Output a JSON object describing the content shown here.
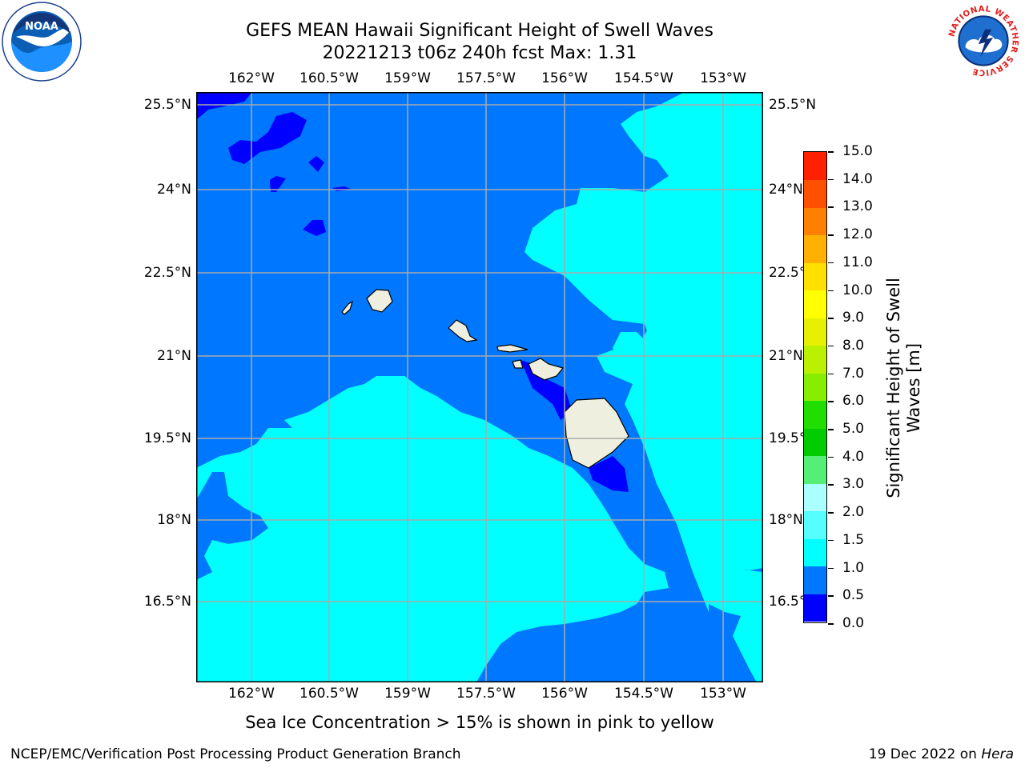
{
  "header": {
    "title_line1": "GEFS MEAN Hawaii Significant Height of Swell Waves",
    "title_line2": "20221213 t06z 240h fcst   Max: 1.31"
  },
  "logos": {
    "left": {
      "icon": "noaa-logo",
      "text": "NOAA"
    },
    "right": {
      "icon": "nws-logo",
      "text": "NATIONAL WEATHER SERVICE"
    }
  },
  "map": {
    "lon_labels": [
      "162°W",
      "160.5°W",
      "159°W",
      "157.5°W",
      "156°W",
      "154.5°W",
      "153°W"
    ],
    "lat_labels": [
      "25.5°N",
      "24°N",
      "22.5°N",
      "21°N",
      "19.5°N",
      "18°N",
      "16.5°N"
    ],
    "colors": {
      "lt05": "#0000ff",
      "b05_1": "#0077ff",
      "b1_15": "#00ffff",
      "land": "#efefdf",
      "grid": "#aaaaaa"
    }
  },
  "colorbar": {
    "title": "Significant Height of Swell Waves [m]",
    "title_line1": "Significant Height of Swell",
    "title_line2": "Waves [m]",
    "tick_labels": [
      "0.0",
      "0.5",
      "1.0",
      "1.5",
      "2.0",
      "3.0",
      "4.0",
      "5.0",
      "6.0",
      "7.0",
      "8.0",
      "9.0",
      "10.0",
      "11.0",
      "12.0",
      "13.0",
      "14.0",
      "15.0"
    ],
    "colors": [
      "#0000ff",
      "#0077ff",
      "#00ffff",
      "#55ffff",
      "#aaffff",
      "#55ee77",
      "#00cc00",
      "#22dd00",
      "#88ee00",
      "#bbf000",
      "#e6f000",
      "#ffff00",
      "#ffe000",
      "#ffb000",
      "#ff8000",
      "#ff5000",
      "#ff2000"
    ]
  },
  "notes": {
    "ice": "Sea Ice Concentration > 15% is shown in pink to yellow",
    "footer_left": "NCEP/EMC/Verification Post Processing Product Generation Branch",
    "footer_date": "19 Dec 2022 on ",
    "footer_machine": "Hera"
  }
}
